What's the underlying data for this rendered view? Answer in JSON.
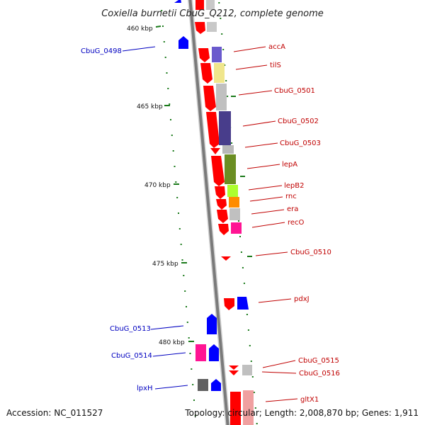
{
  "title": "Coxiella burnetii CbuG_Q212, complete genome",
  "footer": {
    "accession": "Accession: NC_011527",
    "stats": "Topology: circular; Length: 2,008,870 bp; Genes: 1,911"
  },
  "ruler": [
    "460 kbp",
    "465 kbp",
    "470 kbp",
    "475 kbp",
    "480 kbp"
  ],
  "genes_forward": [
    "accA",
    "tilS",
    "CbuG_0501",
    "CbuG_0502",
    "CbuG_0503",
    "lepA",
    "lepB2",
    "rnc",
    "era",
    "recO",
    "CbuG_0510",
    "pdxJ",
    "CbuG_0515",
    "CbuG_0516",
    "gltX1"
  ],
  "genes_reverse": [
    "CbuG_0498",
    "CbuG_0513",
    "CbuG_0514",
    "lpxH"
  ],
  "colors": {
    "forward_strand": "#ff0000",
    "reverse_strand": "#0000ff",
    "backbone": "#7a7a7a",
    "tick": "#1a7a1a",
    "label_forward": "#c00000",
    "label_reverse": "#0000c0"
  }
}
